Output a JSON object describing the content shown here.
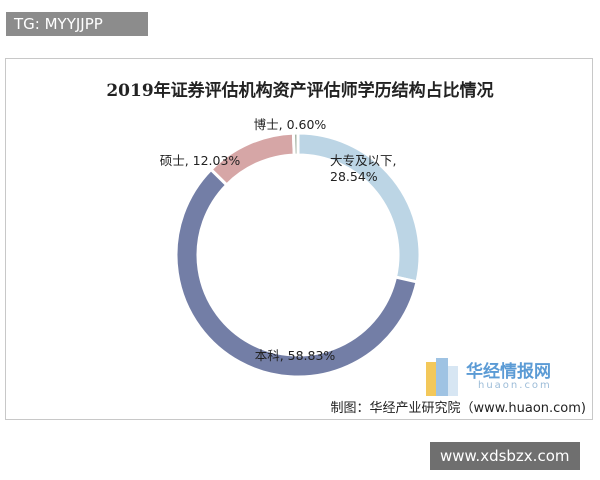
{
  "chart_data": {
    "type": "pie",
    "title": "2019年证券评估机构资产评估师学历结构占比情况",
    "values": [
      28.54,
      58.83,
      12.03,
      0.6
    ],
    "value_labels": [
      "大专及以下, 28.54%",
      "本科, 58.83%",
      "硕士, 12.03%",
      "博士, 0.60%"
    ],
    "colors": [
      "#bcd5e5",
      "#737ea6",
      "#d6a6a6",
      "#a7b5a7"
    ],
    "donut": true
  },
  "watermark_top": "TG: MYYJJPP",
  "watermark_bottom": "www.xdsbzx.com",
  "logo": {
    "name": "华经情报网",
    "url": "huaon.com"
  },
  "source": "制图：华经产业研究院（www.huaon.com)"
}
